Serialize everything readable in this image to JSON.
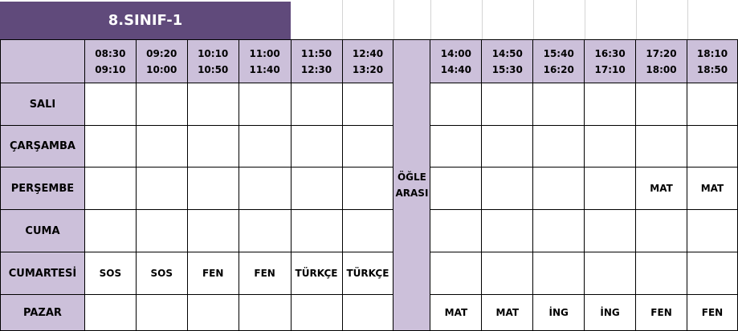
{
  "title": "8.SINIF-1",
  "times": [
    [
      "08:30",
      "09:10"
    ],
    [
      "09:20",
      "10:00"
    ],
    [
      "10:10",
      "10:50"
    ],
    [
      "11:00",
      "11:40"
    ],
    [
      "11:50",
      "12:30"
    ],
    [
      "12:40",
      "13:20"
    ],
    [
      "14:00",
      "14:40"
    ],
    [
      "14:50",
      "15:30"
    ],
    [
      "15:40",
      "16:20"
    ],
    [
      "16:30",
      "17:10"
    ],
    [
      "17:20",
      "18:00"
    ],
    [
      "18:10",
      "18:50"
    ]
  ],
  "lunch": [
    "ÖĞLE",
    "ARASI"
  ],
  "days": [
    {
      "name": "SALI",
      "cells": [
        "",
        "",
        "",
        "",
        "",
        "",
        "",
        "",
        "",
        "",
        "",
        ""
      ]
    },
    {
      "name": "ÇARŞAMBA",
      "cells": [
        "",
        "",
        "",
        "",
        "",
        "",
        "",
        "",
        "",
        "",
        "",
        ""
      ]
    },
    {
      "name": "PERŞEMBE",
      "cells": [
        "",
        "",
        "",
        "",
        "",
        "",
        "",
        "",
        "",
        "",
        "MAT",
        "MAT"
      ]
    },
    {
      "name": "CUMA",
      "cells": [
        "",
        "",
        "",
        "",
        "",
        "",
        "",
        "",
        "",
        "",
        "",
        ""
      ]
    },
    {
      "name": "CUMARTESİ",
      "cells": [
        "SOS",
        "SOS",
        "FEN",
        "FEN",
        "TÜRKÇE",
        "TÜRKÇE",
        "",
        "",
        "",
        "",
        "",
        ""
      ]
    },
    {
      "name": "PAZAR",
      "cells": [
        "",
        "",
        "",
        "",
        "",
        "",
        "MAT",
        "MAT",
        "İNG",
        "İNG",
        "FEN",
        "FEN"
      ]
    }
  ],
  "colors": {
    "title_bg": "#604a7b",
    "header_bg": "#ccc0da"
  }
}
